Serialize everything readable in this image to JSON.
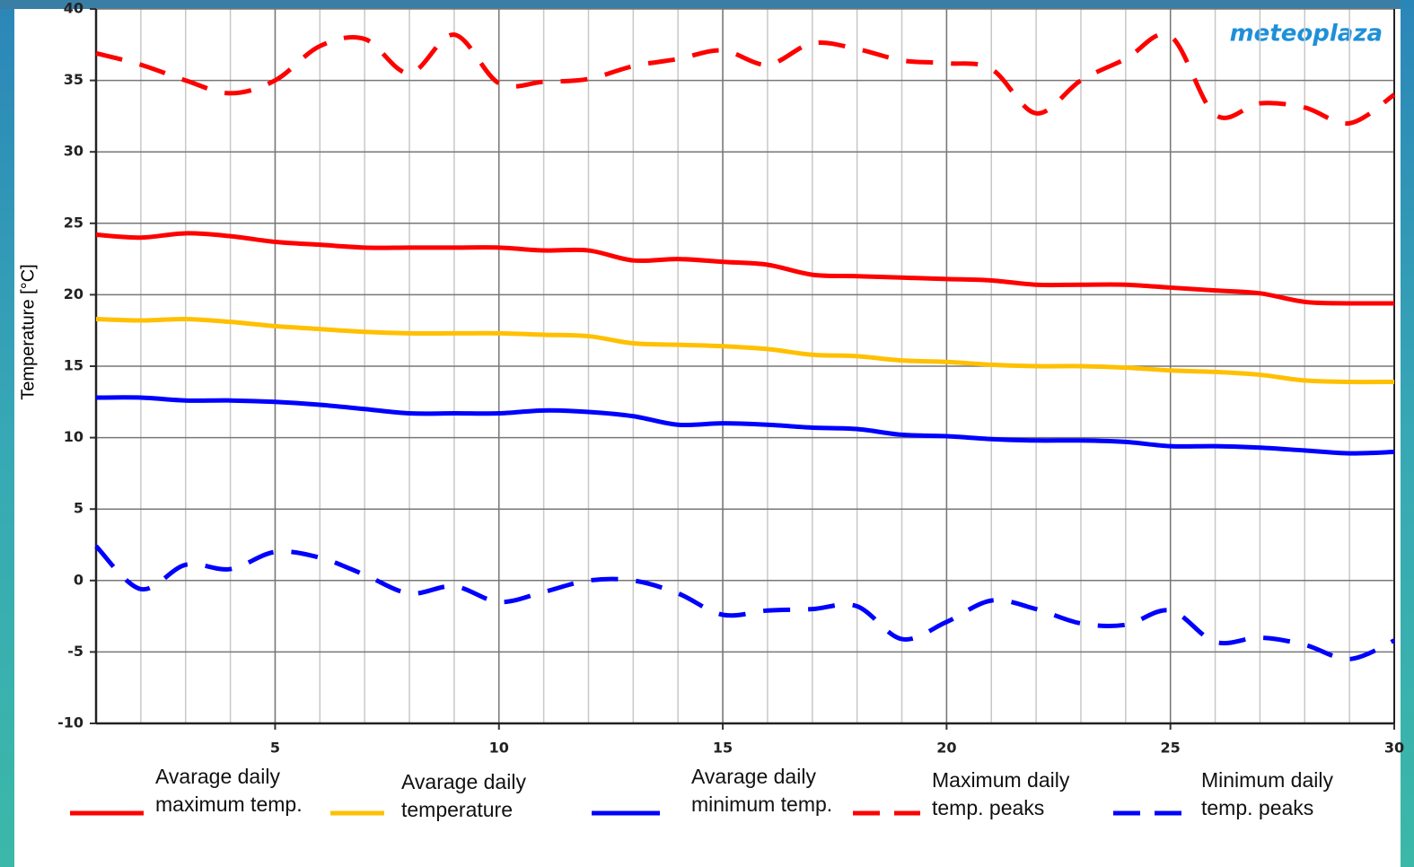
{
  "chart_data": {
    "type": "line",
    "logo": "meteoplaza",
    "y_label": "Temperature [°C]",
    "x": [
      1,
      2,
      3,
      4,
      5,
      6,
      7,
      8,
      9,
      10,
      11,
      12,
      13,
      14,
      15,
      16,
      17,
      18,
      19,
      20,
      21,
      22,
      23,
      24,
      25,
      26,
      27,
      28,
      29,
      30
    ],
    "xlim": [
      1,
      30
    ],
    "xticks": [
      5,
      10,
      15,
      20,
      25,
      30
    ],
    "ylim": [
      -10,
      40
    ],
    "yticks": [
      -10,
      -5,
      0,
      5,
      10,
      15,
      20,
      25,
      30,
      35,
      40
    ],
    "grid": true,
    "series": [
      {
        "name": "Avarage daily maximum temp.",
        "color": "#ff0000",
        "style": "solid",
        "values": [
          24.2,
          24.0,
          24.3,
          24.1,
          23.7,
          23.5,
          23.3,
          23.3,
          23.3,
          23.3,
          23.1,
          23.1,
          22.4,
          22.5,
          22.3,
          22.1,
          21.4,
          21.3,
          21.2,
          21.1,
          21.0,
          20.7,
          20.7,
          20.7,
          20.5,
          20.3,
          20.1,
          19.5,
          19.4,
          19.4
        ]
      },
      {
        "name": "Avarage daily temperature",
        "color": "#ffc000",
        "style": "solid",
        "values": [
          18.3,
          18.2,
          18.3,
          18.1,
          17.8,
          17.6,
          17.4,
          17.3,
          17.3,
          17.3,
          17.2,
          17.1,
          16.6,
          16.5,
          16.4,
          16.2,
          15.8,
          15.7,
          15.4,
          15.3,
          15.1,
          15.0,
          15.0,
          14.9,
          14.7,
          14.6,
          14.4,
          14.0,
          13.9,
          13.9
        ]
      },
      {
        "name": "Avarage daily minimum temp.",
        "color": "#0000ff",
        "style": "solid",
        "values": [
          12.8,
          12.8,
          12.6,
          12.6,
          12.5,
          12.3,
          12.0,
          11.7,
          11.7,
          11.7,
          11.9,
          11.8,
          11.5,
          10.9,
          11.0,
          10.9,
          10.7,
          10.6,
          10.2,
          10.1,
          9.9,
          9.8,
          9.8,
          9.7,
          9.4,
          9.4,
          9.3,
          9.1,
          8.9,
          9.0
        ]
      },
      {
        "name": "Maximum daily temp. peaks",
        "color": "#ff0000",
        "style": "dashed",
        "values": [
          36.9,
          36.1,
          35.0,
          34.1,
          35.0,
          37.4,
          37.9,
          35.5,
          38.2,
          34.8,
          34.9,
          35.1,
          36.0,
          36.5,
          37.1,
          36.1,
          37.6,
          37.2,
          36.4,
          36.2,
          35.8,
          32.7,
          35.0,
          36.5,
          38.1,
          32.6,
          33.4,
          33.1,
          32.0,
          34.0
        ]
      },
      {
        "name": "Minimum daily temp. peaks",
        "color": "#0000ff",
        "style": "dashed",
        "values": [
          2.4,
          -0.6,
          1.1,
          0.8,
          2.0,
          1.6,
          0.4,
          -0.9,
          -0.4,
          -1.5,
          -0.8,
          0.0,
          0.0,
          -0.9,
          -2.4,
          -2.1,
          -2.0,
          -1.8,
          -4.1,
          -2.9,
          -1.4,
          -2.0,
          -3.0,
          -3.1,
          -2.1,
          -4.3,
          -4.0,
          -4.5,
          -5.5,
          -4.2
        ]
      }
    ]
  }
}
